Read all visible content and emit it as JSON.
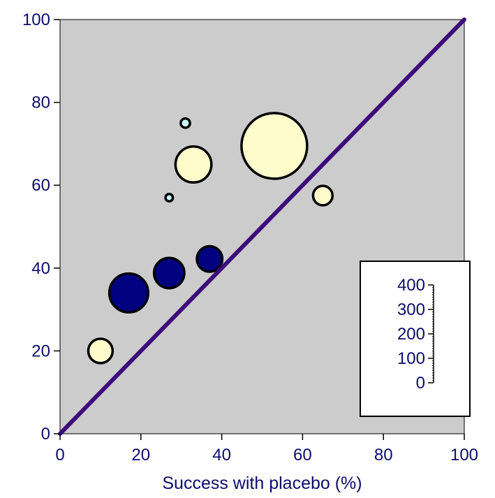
{
  "chart_data": {
    "type": "scatter",
    "title": "",
    "xlabel": "Success with placebo (%)",
    "ylabel": "",
    "xlim": [
      0,
      100
    ],
    "ylim": [
      0,
      100
    ],
    "x_ticks": [
      "0",
      "20",
      "40",
      "60",
      "80",
      "100"
    ],
    "y_ticks": [
      "0",
      "20",
      "40",
      "60",
      "80",
      "100"
    ],
    "grid": false,
    "reference_line": {
      "from": [
        0,
        0
      ],
      "to": [
        100,
        100
      ],
      "color": "#3d0c7a"
    },
    "plot_background": "#cccccc",
    "series": [
      {
        "color": "#fffccc",
        "points": [
          {
            "x": 53,
            "y": 69.5,
            "size": 400
          },
          {
            "x": 33,
            "y": 65,
            "size": 120
          },
          {
            "x": 10,
            "y": 20,
            "size": 55
          },
          {
            "x": 65,
            "y": 57.5,
            "size": 35
          }
        ]
      },
      {
        "color": "#000080",
        "points": [
          {
            "x": 17,
            "y": 34,
            "size": 140
          },
          {
            "x": 27,
            "y": 38.8,
            "size": 85
          },
          {
            "x": 37,
            "y": 42.2,
            "size": 60
          }
        ]
      },
      {
        "color": "#ccffff",
        "points": [
          {
            "x": 31,
            "y": 75,
            "size": 8
          },
          {
            "x": 27,
            "y": 57,
            "size": 5
          }
        ]
      }
    ],
    "size_legend": {
      "placement": "bottom-right",
      "ticks": [
        "400",
        "300",
        "200",
        "100",
        "0"
      ]
    }
  }
}
